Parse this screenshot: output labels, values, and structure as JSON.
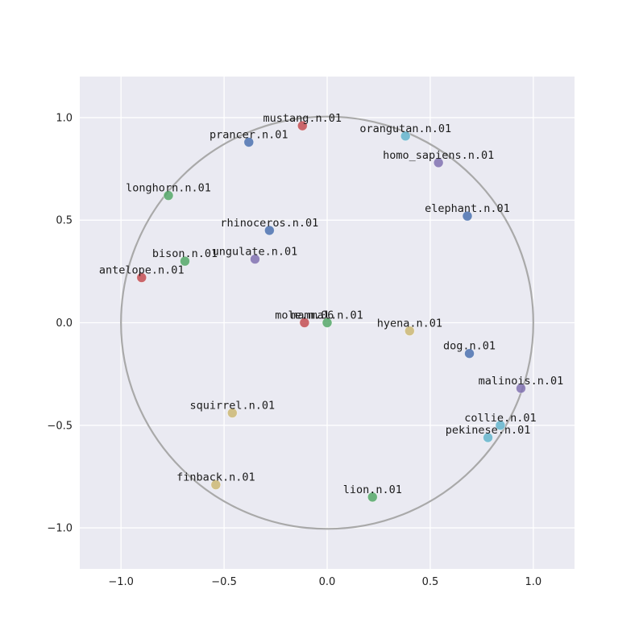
{
  "chart_data": {
    "type": "scatter",
    "title": "",
    "xlabel": "",
    "ylabel": "",
    "xlim": [
      -1.2,
      1.2
    ],
    "ylim": [
      -1.2,
      1.2
    ],
    "grid": true,
    "xticks": [
      "−1.0",
      "−0.5",
      "0.0",
      "0.5",
      "1.0"
    ],
    "xtick_values": [
      -1.0,
      -0.5,
      0.0,
      0.5,
      1.0
    ],
    "yticks": [
      "1.0",
      "0.5",
      "0.0",
      "−0.5",
      "−1.0"
    ],
    "ytick_values": [
      1.0,
      0.5,
      0.0,
      -0.5,
      -1.0
    ],
    "unit_circle": {
      "cx": 0,
      "cy": 0,
      "r": 1.0,
      "color": "#a9a9a9"
    },
    "colors": {
      "background": "#eaeaf2",
      "grid": "#ffffff",
      "red": "#c44e52",
      "blue": "#4c72b0",
      "green": "#55a868",
      "purple": "#8172b2",
      "cyan": "#64b5cd",
      "yellow": "#ccb974"
    },
    "points": [
      {
        "label": "mustang.n.01",
        "x": -0.12,
        "y": 0.96,
        "color": "red"
      },
      {
        "label": "prancer.n.01",
        "x": -0.38,
        "y": 0.88,
        "color": "blue"
      },
      {
        "label": "orangutan.n.01",
        "x": 0.38,
        "y": 0.91,
        "color": "cyan"
      },
      {
        "label": "homo_sapiens.n.01",
        "x": 0.54,
        "y": 0.78,
        "color": "purple"
      },
      {
        "label": "longhorn.n.01",
        "x": -0.77,
        "y": 0.62,
        "color": "green"
      },
      {
        "label": "elephant.n.01",
        "x": 0.68,
        "y": 0.52,
        "color": "blue"
      },
      {
        "label": "rhinoceros.n.01",
        "x": -0.28,
        "y": 0.45,
        "color": "blue"
      },
      {
        "label": "bison.n.01",
        "x": -0.69,
        "y": 0.3,
        "color": "green"
      },
      {
        "label": "ungulate.n.01",
        "x": -0.35,
        "y": 0.31,
        "color": "purple"
      },
      {
        "label": "antelope.n.01",
        "x": -0.9,
        "y": 0.22,
        "color": "red"
      },
      {
        "label": "mammal.n.01",
        "x": 0.0,
        "y": 0.0,
        "color": "green"
      },
      {
        "label": "mole.n.06",
        "x": -0.11,
        "y": 0.0,
        "color": "red"
      },
      {
        "label": "hyena.n.01",
        "x": 0.4,
        "y": -0.04,
        "color": "yellow"
      },
      {
        "label": "dog.n.01",
        "x": 0.69,
        "y": -0.15,
        "color": "blue"
      },
      {
        "label": "malinois.n.01",
        "x": 0.94,
        "y": -0.32,
        "color": "purple"
      },
      {
        "label": "collie.n.01",
        "x": 0.84,
        "y": -0.5,
        "color": "cyan"
      },
      {
        "label": "pekinese.n.01",
        "x": 0.78,
        "y": -0.56,
        "color": "cyan"
      },
      {
        "label": "squirrel.n.01",
        "x": -0.46,
        "y": -0.44,
        "color": "yellow"
      },
      {
        "label": "finback.n.01",
        "x": -0.54,
        "y": -0.79,
        "color": "yellow"
      },
      {
        "label": "lion.n.01",
        "x": 0.22,
        "y": -0.85,
        "color": "green"
      }
    ]
  }
}
